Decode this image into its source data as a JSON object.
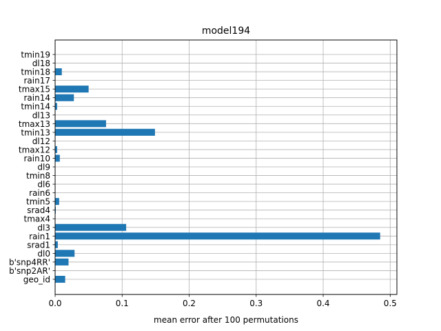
{
  "chart_data": {
    "type": "bar",
    "orientation": "horizontal",
    "title": "model194",
    "xlabel": "mean error after 100 permutations",
    "ylabel": "",
    "xlim": [
      0,
      0.51
    ],
    "xticks": [
      0.0,
      0.1,
      0.2,
      0.3,
      0.4,
      0.5
    ],
    "xtick_labels": [
      "0.0",
      "0.1",
      "0.2",
      "0.3",
      "0.4",
      "0.5"
    ],
    "grid": true,
    "bar_color": "#1f77b4",
    "categories": [
      "geo_id",
      "b'snp2AR'",
      "b'snp4RR'",
      "dl0",
      "srad1",
      "rain1",
      "dl3",
      "tmax4",
      "srad4",
      "tmin5",
      "rain6",
      "dl6",
      "tmin8",
      "dl9",
      "rain10",
      "tmax12",
      "dl12",
      "tmin13",
      "tmax13",
      "dl13",
      "tmin14",
      "rain14",
      "tmax15",
      "rain17",
      "tmin18",
      "dl18",
      "tmin19"
    ],
    "values": [
      0.015,
      0.0,
      0.02,
      0.029,
      0.004,
      0.485,
      0.106,
      0.0,
      0.001,
      0.006,
      0.0,
      0.0,
      0.0,
      0.0,
      0.007,
      0.003,
      0.0,
      0.149,
      0.076,
      0.0,
      0.003,
      0.028,
      0.05,
      0.0,
      0.01,
      0.0,
      0.0
    ]
  }
}
